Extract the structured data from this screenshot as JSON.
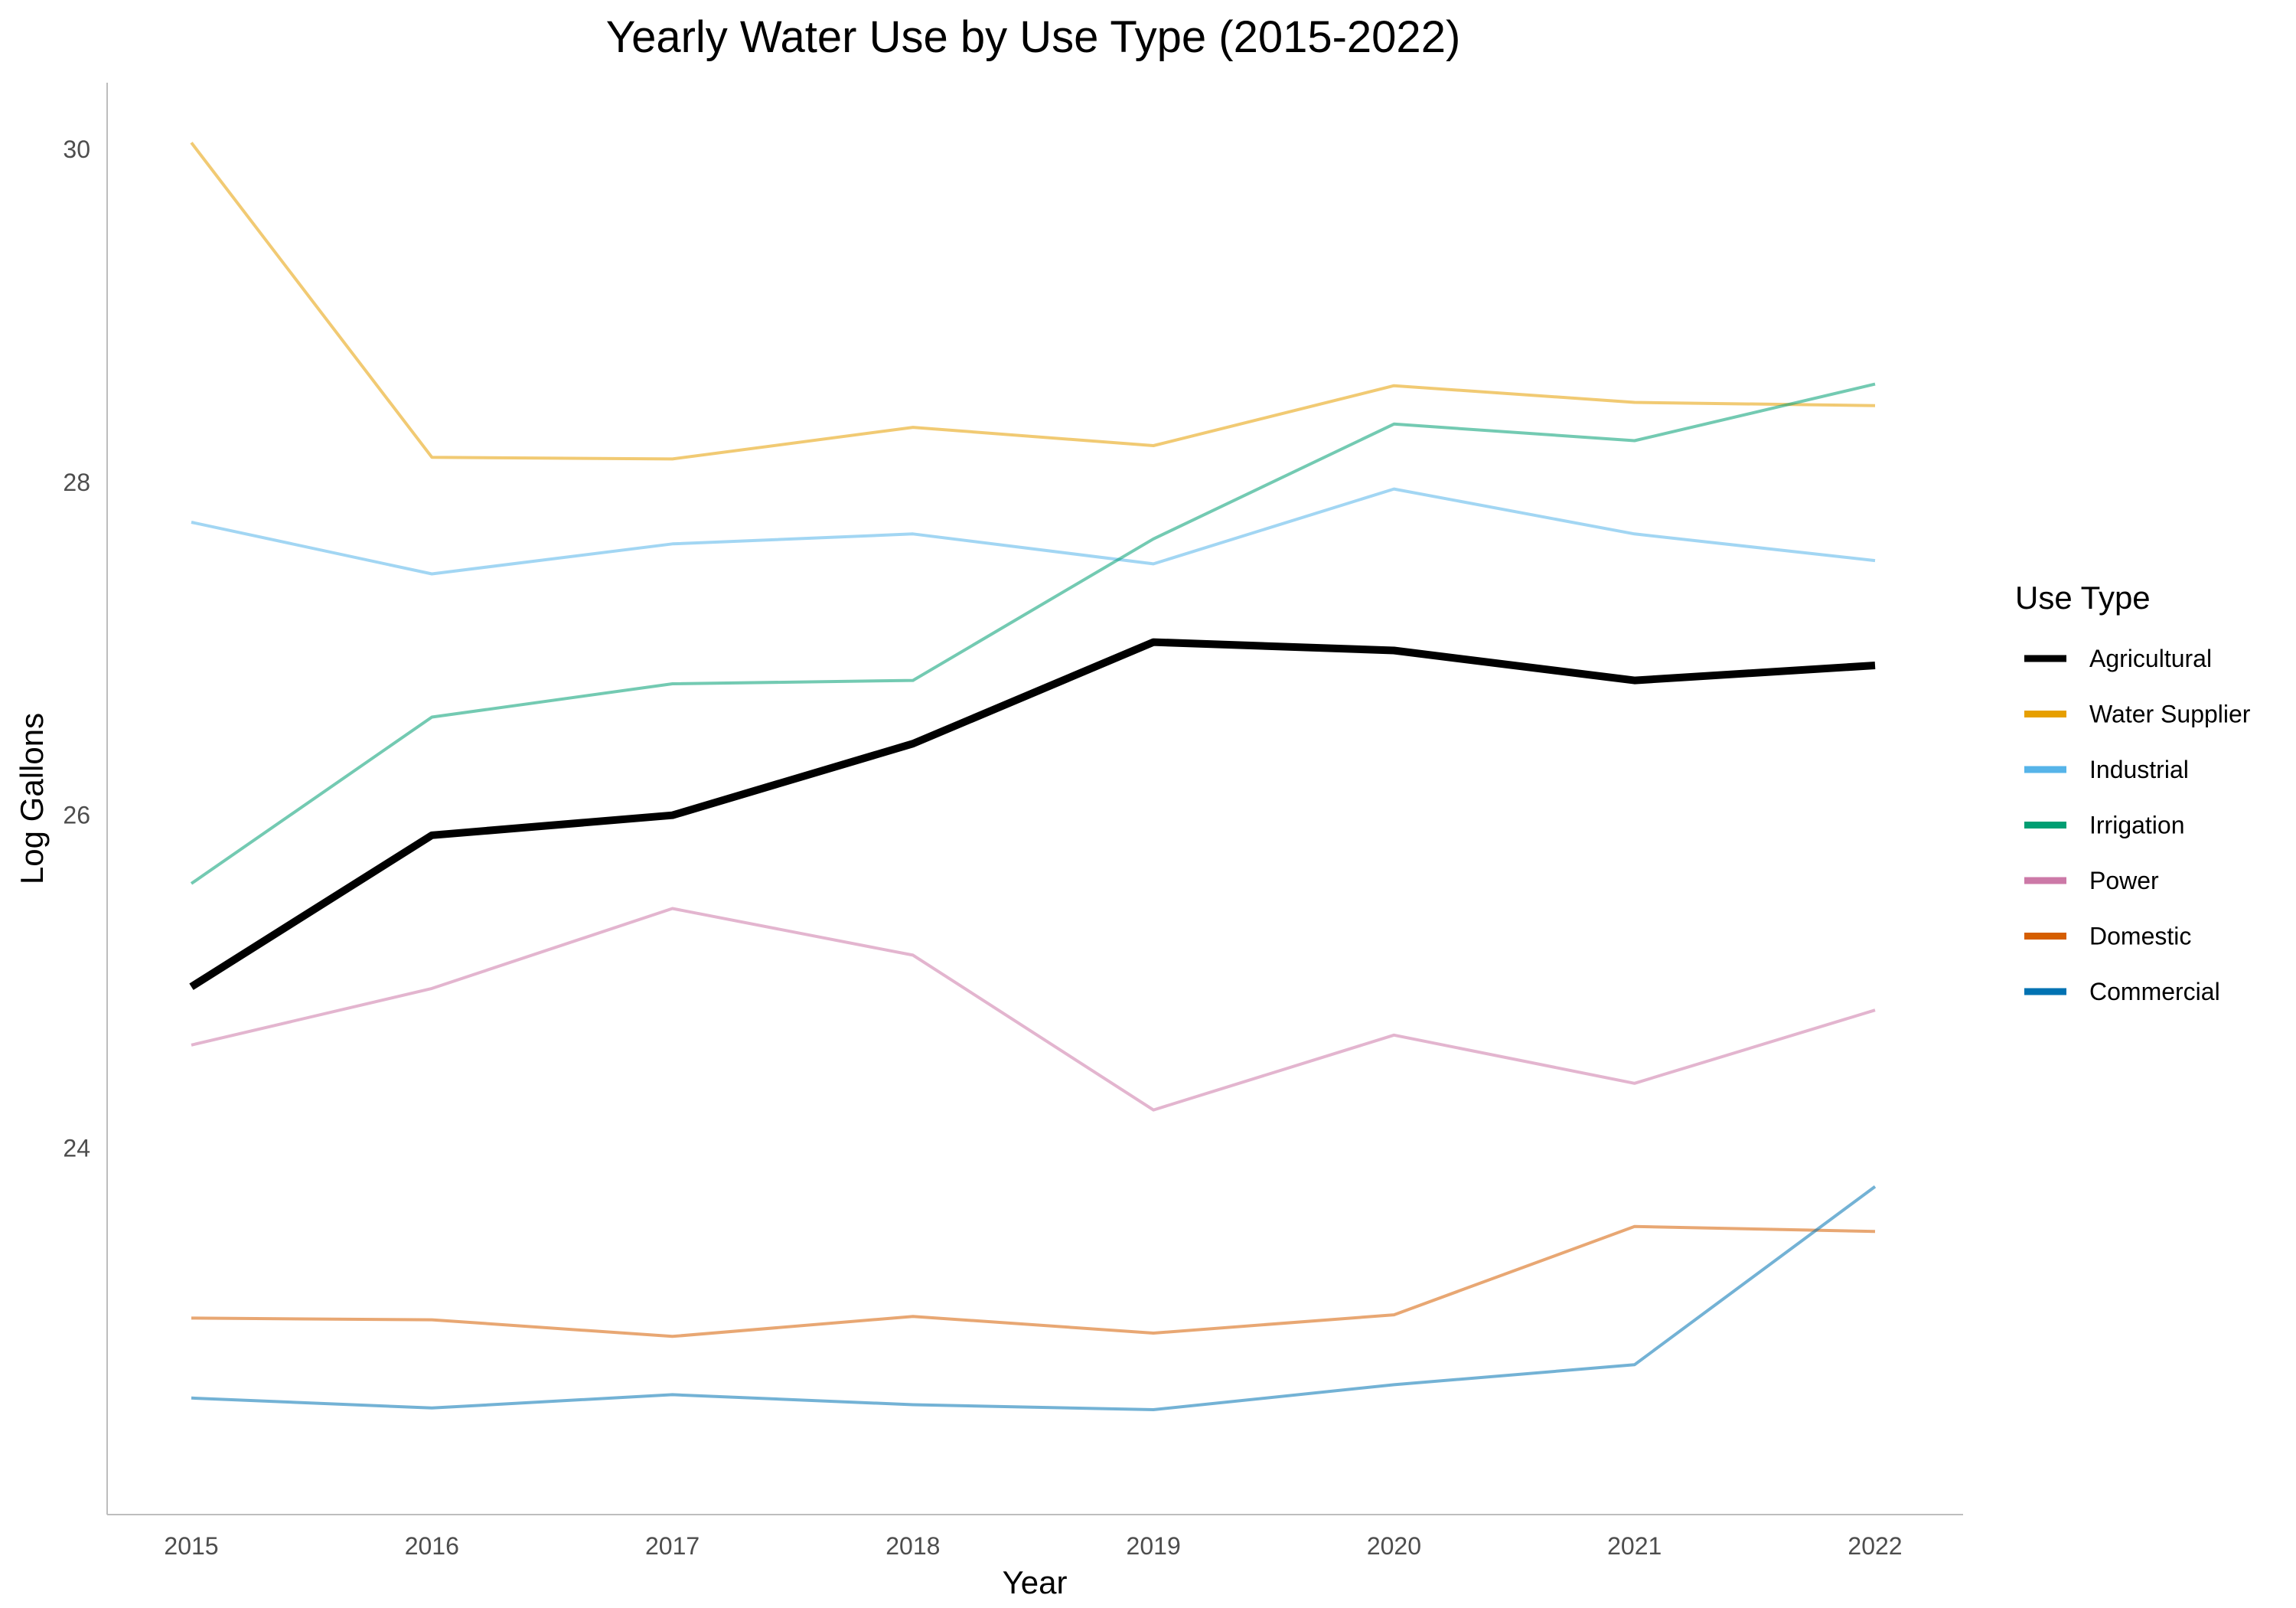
{
  "chart_data": {
    "type": "line",
    "title": "Yearly Water Use by Use Type (2015-2022)",
    "xlabel": "Year",
    "ylabel": "Log Gallons",
    "x": [
      2015,
      2016,
      2017,
      2018,
      2019,
      2020,
      2021,
      2022
    ],
    "x_ticks": [
      "2015",
      "2016",
      "2017",
      "2018",
      "2019",
      "2020",
      "2021",
      "2022"
    ],
    "y_ticks": [
      "24",
      "26",
      "28",
      "30"
    ],
    "y_tick_values": [
      24,
      26,
      28,
      30
    ],
    "ylim": [
      21.8,
      30.4
    ],
    "grid": false,
    "legend": {
      "title": "Use Type",
      "placement": "right"
    },
    "series": [
      {
        "name": "Agricultural",
        "color": "#000000",
        "emphasis": true,
        "values": [
          24.97,
          25.88,
          26.0,
          26.43,
          27.04,
          26.99,
          26.81,
          26.9
        ]
      },
      {
        "name": "Water Supplier",
        "color": "#E69F00",
        "values": [
          30.04,
          28.15,
          28.14,
          28.33,
          28.22,
          28.58,
          28.48,
          28.46
        ]
      },
      {
        "name": "Industrial",
        "color": "#56B4E9",
        "values": [
          27.76,
          27.45,
          27.63,
          27.69,
          27.51,
          27.96,
          27.69,
          27.53
        ]
      },
      {
        "name": "Irrigation",
        "color": "#009E73",
        "values": [
          25.59,
          26.59,
          26.79,
          26.81,
          27.66,
          28.35,
          28.25,
          28.59
        ]
      },
      {
        "name": "Power",
        "color": "#CC79A7",
        "values": [
          24.62,
          24.96,
          25.44,
          25.16,
          24.23,
          24.68,
          24.39,
          24.83
        ]
      },
      {
        "name": "Domestic",
        "color": "#D55E00",
        "values": [
          22.98,
          22.97,
          22.87,
          22.99,
          22.89,
          23.0,
          23.53,
          23.5
        ]
      },
      {
        "name": "Commercial",
        "color": "#0072B2",
        "values": [
          22.5,
          22.44,
          22.52,
          22.46,
          22.43,
          22.58,
          22.7,
          23.77
        ]
      }
    ]
  }
}
